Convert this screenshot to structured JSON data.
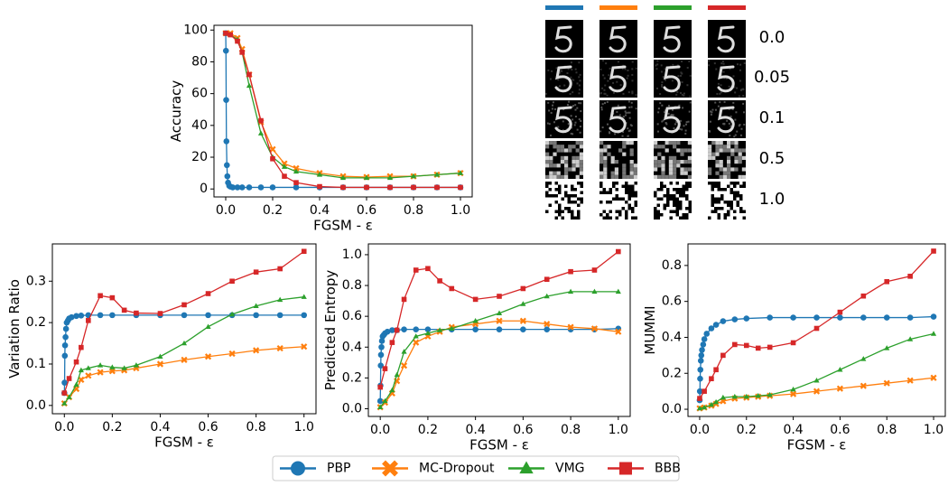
{
  "chart_data": [
    {
      "type": "line",
      "ylabel": "Accuracy",
      "xlabel": "FGSM - ε",
      "xlim": [
        -0.05,
        1.05
      ],
      "ylim": [
        -5,
        103
      ],
      "xticks": [
        {
          "value": 0,
          "label": "0.0"
        },
        0.2,
        0.4,
        0.6,
        0.8,
        {
          "value": 1,
          "label": "1.0"
        }
      ],
      "yticks": [
        0,
        20,
        40,
        60,
        80,
        100
      ],
      "series": [
        {
          "x": [
            0,
            0.001,
            0.002,
            0.003,
            0.005,
            0.007,
            0.01,
            0.015,
            0.02,
            0.03,
            0.05,
            0.07,
            0.1,
            0.15,
            0.2,
            0.3,
            0.4,
            0.5,
            0.6,
            0.7,
            0.8,
            0.9,
            1.0
          ],
          "values": [
            98,
            87,
            56,
            30,
            15,
            8,
            4,
            2,
            1.5,
            1,
            1,
            1,
            1,
            1,
            1,
            1,
            1,
            1,
            1,
            1,
            1,
            1,
            1
          ]
        },
        {
          "x": [
            0,
            0.02,
            0.05,
            0.07,
            0.1,
            0.15,
            0.2,
            0.25,
            0.3,
            0.4,
            0.5,
            0.6,
            0.7,
            0.8,
            0.9,
            1.0
          ],
          "values": [
            98,
            98,
            95,
            88,
            72,
            42,
            25,
            16,
            13,
            10,
            8,
            7.5,
            8,
            8,
            9,
            10
          ]
        },
        {
          "x": [
            0,
            0.02,
            0.05,
            0.07,
            0.1,
            0.15,
            0.2,
            0.25,
            0.3,
            0.4,
            0.5,
            0.6,
            0.7,
            0.8,
            0.9,
            1.0
          ],
          "values": [
            98,
            97,
            94,
            86,
            65,
            35,
            20,
            14,
            11,
            9,
            7,
            7,
            7,
            8,
            9,
            10
          ]
        },
        {
          "x": [
            0,
            0.02,
            0.05,
            0.07,
            0.1,
            0.15,
            0.2,
            0.25,
            0.3,
            0.4,
            0.5,
            0.6,
            0.7,
            0.8,
            0.9,
            1.0
          ],
          "values": [
            98,
            97,
            93,
            86,
            72,
            43,
            19,
            8,
            4,
            1.5,
            1,
            1,
            1,
            1,
            1,
            1
          ]
        }
      ]
    },
    {
      "type": "line",
      "ylabel": "Variation Ratio",
      "xlabel": "FGSM - ε",
      "xlim": [
        -0.05,
        1.05
      ],
      "ylim": [
        -0.02,
        0.39
      ],
      "xticks": [
        {
          "value": 0,
          "label": "0.0"
        },
        0.2,
        0.4,
        0.6,
        0.8,
        {
          "value": 1,
          "label": "1.0"
        }
      ],
      "yticks": [
        {
          "value": 0,
          "label": "0.0"
        },
        0.1,
        0.2,
        0.3
      ],
      "series": [
        {
          "x": [
            0,
            0.001,
            0.002,
            0.003,
            0.005,
            0.007,
            0.01,
            0.015,
            0.02,
            0.03,
            0.05,
            0.07,
            0.1,
            0.15,
            0.2,
            0.3,
            0.4,
            0.5,
            0.6,
            0.7,
            0.8,
            0.9,
            1.0
          ],
          "values": [
            0.03,
            0.055,
            0.12,
            0.145,
            0.165,
            0.185,
            0.2,
            0.205,
            0.21,
            0.213,
            0.216,
            0.217,
            0.218,
            0.218,
            0.218,
            0.218,
            0.218,
            0.218,
            0.218,
            0.218,
            0.218,
            0.218,
            0.218
          ]
        },
        {
          "x": [
            0,
            0.02,
            0.05,
            0.07,
            0.1,
            0.15,
            0.2,
            0.25,
            0.3,
            0.4,
            0.5,
            0.6,
            0.7,
            0.8,
            0.9,
            1.0
          ],
          "values": [
            0.005,
            0.02,
            0.04,
            0.062,
            0.072,
            0.08,
            0.083,
            0.085,
            0.09,
            0.1,
            0.11,
            0.118,
            0.125,
            0.133,
            0.138,
            0.142
          ]
        },
        {
          "x": [
            0,
            0.02,
            0.05,
            0.07,
            0.1,
            0.15,
            0.2,
            0.25,
            0.3,
            0.4,
            0.5,
            0.6,
            0.7,
            0.8,
            0.9,
            1.0
          ],
          "values": [
            0.005,
            0.02,
            0.05,
            0.085,
            0.09,
            0.097,
            0.092,
            0.09,
            0.097,
            0.118,
            0.15,
            0.19,
            0.22,
            0.24,
            0.255,
            0.262
          ]
        },
        {
          "x": [
            0,
            0.02,
            0.05,
            0.07,
            0.1,
            0.15,
            0.2,
            0.25,
            0.3,
            0.4,
            0.5,
            0.6,
            0.7,
            0.8,
            0.9,
            1.0
          ],
          "values": [
            0.03,
            0.065,
            0.105,
            0.14,
            0.205,
            0.265,
            0.26,
            0.23,
            0.223,
            0.222,
            0.243,
            0.27,
            0.3,
            0.322,
            0.33,
            0.372
          ]
        }
      ]
    },
    {
      "type": "line",
      "ylabel": "Predicted Entropy",
      "xlabel": "FGSM - ε",
      "xlim": [
        -0.05,
        1.05
      ],
      "ylim": [
        -0.05,
        1.07
      ],
      "xticks": [
        {
          "value": 0,
          "label": "0.0"
        },
        0.2,
        0.4,
        0.6,
        0.8,
        {
          "value": 1,
          "label": "1.0"
        }
      ],
      "yticks": [
        {
          "value": 0,
          "label": "0.0"
        },
        0.2,
        0.4,
        0.6,
        0.8,
        {
          "value": 1,
          "label": "1.0"
        }
      ],
      "series": [
        {
          "x": [
            0,
            0.001,
            0.002,
            0.003,
            0.005,
            0.007,
            0.01,
            0.015,
            0.02,
            0.03,
            0.05,
            0.07,
            0.1,
            0.15,
            0.2,
            0.3,
            0.4,
            0.5,
            0.6,
            0.7,
            0.8,
            0.9,
            1.0
          ],
          "values": [
            0.05,
            0.15,
            0.28,
            0.35,
            0.4,
            0.44,
            0.47,
            0.48,
            0.49,
            0.5,
            0.51,
            0.51,
            0.515,
            0.515,
            0.515,
            0.515,
            0.515,
            0.515,
            0.515,
            0.515,
            0.515,
            0.515,
            0.52
          ]
        },
        {
          "x": [
            0,
            0.02,
            0.05,
            0.07,
            0.1,
            0.15,
            0.2,
            0.25,
            0.3,
            0.4,
            0.5,
            0.6,
            0.7,
            0.8,
            0.9,
            1.0
          ],
          "values": [
            0.01,
            0.04,
            0.1,
            0.18,
            0.28,
            0.43,
            0.47,
            0.5,
            0.53,
            0.55,
            0.57,
            0.57,
            0.55,
            0.53,
            0.52,
            0.5
          ]
        },
        {
          "x": [
            0,
            0.02,
            0.05,
            0.07,
            0.1,
            0.15,
            0.2,
            0.25,
            0.3,
            0.4,
            0.5,
            0.6,
            0.7,
            0.8,
            0.9,
            1.0
          ],
          "values": [
            0.01,
            0.05,
            0.12,
            0.22,
            0.37,
            0.47,
            0.49,
            0.51,
            0.52,
            0.57,
            0.62,
            0.68,
            0.73,
            0.76,
            0.76,
            0.76
          ]
        },
        {
          "x": [
            0,
            0.02,
            0.05,
            0.07,
            0.1,
            0.15,
            0.2,
            0.25,
            0.3,
            0.4,
            0.5,
            0.6,
            0.7,
            0.8,
            0.9,
            1.0
          ],
          "values": [
            0.14,
            0.26,
            0.43,
            0.51,
            0.71,
            0.9,
            0.91,
            0.83,
            0.78,
            0.71,
            0.73,
            0.78,
            0.84,
            0.89,
            0.9,
            1.02
          ]
        }
      ]
    },
    {
      "type": "line",
      "ylabel": "MUMMI",
      "xlabel": "FGSM - ε",
      "xlim": [
        -0.05,
        1.05
      ],
      "ylim": [
        -0.04,
        0.92
      ],
      "xticks": [
        {
          "value": 0,
          "label": "0.0"
        },
        0.2,
        0.4,
        0.6,
        0.8,
        {
          "value": 1,
          "label": "1.0"
        }
      ],
      "yticks": [
        {
          "value": 0,
          "label": "0.0"
        },
        0.2,
        0.4,
        0.6,
        0.8
      ],
      "series": [
        {
          "x": [
            0,
            0.001,
            0.002,
            0.003,
            0.005,
            0.007,
            0.01,
            0.015,
            0.02,
            0.03,
            0.05,
            0.07,
            0.1,
            0.15,
            0.2,
            0.3,
            0.4,
            0.5,
            0.6,
            0.7,
            0.8,
            0.9,
            1.0
          ],
          "values": [
            0.05,
            0.1,
            0.17,
            0.22,
            0.27,
            0.3,
            0.33,
            0.36,
            0.39,
            0.42,
            0.45,
            0.47,
            0.49,
            0.5,
            0.505,
            0.51,
            0.51,
            0.51,
            0.51,
            0.51,
            0.51,
            0.51,
            0.515
          ]
        },
        {
          "x": [
            0,
            0.02,
            0.05,
            0.07,
            0.1,
            0.15,
            0.2,
            0.25,
            0.3,
            0.4,
            0.5,
            0.6,
            0.7,
            0.8,
            0.9,
            1.0
          ],
          "values": [
            0.005,
            0.01,
            0.02,
            0.03,
            0.045,
            0.06,
            0.065,
            0.07,
            0.075,
            0.085,
            0.1,
            0.115,
            0.13,
            0.145,
            0.16,
            0.175
          ]
        },
        {
          "x": [
            0,
            0.02,
            0.05,
            0.07,
            0.1,
            0.15,
            0.2,
            0.25,
            0.3,
            0.4,
            0.5,
            0.6,
            0.7,
            0.8,
            0.9,
            1.0
          ],
          "values": [
            0.005,
            0.01,
            0.025,
            0.04,
            0.065,
            0.07,
            0.07,
            0.075,
            0.08,
            0.11,
            0.16,
            0.22,
            0.28,
            0.34,
            0.39,
            0.42
          ]
        },
        {
          "x": [
            0,
            0.02,
            0.05,
            0.07,
            0.1,
            0.15,
            0.2,
            0.25,
            0.3,
            0.4,
            0.5,
            0.6,
            0.7,
            0.8,
            0.9,
            1.0
          ],
          "values": [
            0.06,
            0.1,
            0.17,
            0.22,
            0.3,
            0.36,
            0.355,
            0.34,
            0.345,
            0.37,
            0.45,
            0.54,
            0.63,
            0.71,
            0.74,
            0.88
          ]
        }
      ]
    }
  ],
  "legend": {
    "entries": [
      {
        "name": "PBP",
        "color": "#1f77b4",
        "marker": "circle"
      },
      {
        "name": "MC-Dropout",
        "color": "#ff7f0e",
        "marker": "x"
      },
      {
        "name": "VMG",
        "color": "#2ca02c",
        "marker": "triangle"
      },
      {
        "name": "BBB",
        "color": "#d62728",
        "marker": "square"
      }
    ]
  },
  "image_grid": {
    "row_labels": [
      "0.0",
      "0.05",
      "0.1",
      "0.5",
      "1.0"
    ]
  }
}
